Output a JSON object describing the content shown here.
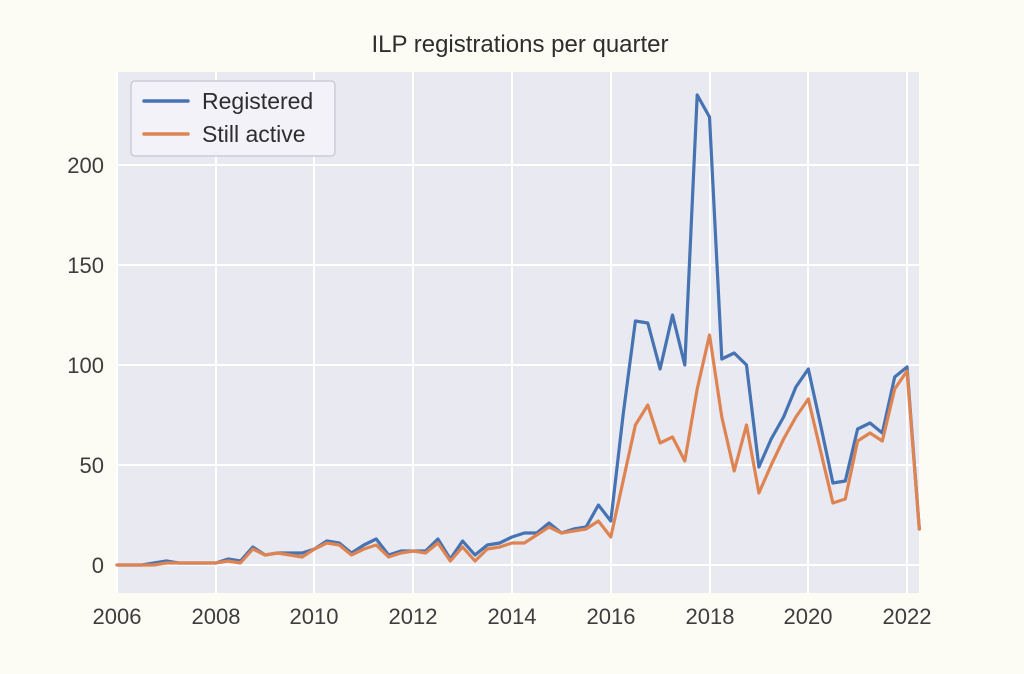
{
  "title": "ILP registrations per quarter",
  "legend": {
    "items": [
      {
        "id": "registered",
        "label": "Registered",
        "color": "#4673b2"
      },
      {
        "id": "still-active",
        "label": "Still active",
        "color": "#de8452"
      }
    ]
  },
  "axes": {
    "x_tick_labels": [
      "2006",
      "2008",
      "2010",
      "2012",
      "2014",
      "2016",
      "2018",
      "2020",
      "2022"
    ],
    "y_tick_labels": [
      "0",
      "50",
      "100",
      "150",
      "200"
    ]
  },
  "chart_data": {
    "type": "line",
    "title": "ILP registrations per quarter",
    "xlabel": "",
    "ylabel": "",
    "x_unit": "decimal year (quarterly points, 2006Q1 - 2022Q2)",
    "x": [
      2006.0,
      2006.25,
      2006.5,
      2006.75,
      2007.0,
      2007.25,
      2007.5,
      2007.75,
      2008.0,
      2008.25,
      2008.5,
      2008.75,
      2009.0,
      2009.25,
      2009.5,
      2009.75,
      2010.0,
      2010.25,
      2010.5,
      2010.75,
      2011.0,
      2011.25,
      2011.5,
      2011.75,
      2012.0,
      2012.25,
      2012.5,
      2012.75,
      2013.0,
      2013.25,
      2013.5,
      2013.75,
      2014.0,
      2014.25,
      2014.5,
      2014.75,
      2015.0,
      2015.25,
      2015.5,
      2015.75,
      2016.0,
      2016.25,
      2016.5,
      2016.75,
      2017.0,
      2017.25,
      2017.5,
      2017.75,
      2018.0,
      2018.25,
      2018.5,
      2018.75,
      2019.0,
      2019.25,
      2019.5,
      2019.75,
      2020.0,
      2020.25,
      2020.5,
      2020.75,
      2021.0,
      2021.25,
      2021.5,
      2021.75,
      2022.0,
      2022.25
    ],
    "series": [
      {
        "id": "registered",
        "name": "Registered",
        "color": "#4673b2",
        "values": [
          0,
          0,
          0,
          1,
          2,
          1,
          1,
          1,
          1,
          3,
          2,
          9,
          5,
          6,
          6,
          6,
          8,
          12,
          11,
          6,
          10,
          13,
          5,
          7,
          7,
          7,
          13,
          3,
          12,
          5,
          10,
          11,
          14,
          16,
          16,
          21,
          16,
          18,
          19,
          30,
          22,
          75,
          122,
          121,
          98,
          125,
          100,
          235,
          224,
          103,
          106,
          100,
          49,
          63,
          74,
          89,
          98,
          70,
          41,
          42,
          68,
          71,
          66,
          94,
          99,
          18
        ]
      },
      {
        "id": "still-active",
        "name": "Still active",
        "color": "#de8452",
        "values": [
          0,
          0,
          0,
          0,
          1,
          1,
          1,
          1,
          1,
          2,
          1,
          8,
          5,
          6,
          5,
          4,
          8,
          11,
          10,
          5,
          8,
          10,
          4,
          6,
          7,
          6,
          11,
          2,
          9,
          2,
          8,
          9,
          11,
          11,
          15,
          19,
          16,
          17,
          18,
          22,
          14,
          42,
          70,
          80,
          61,
          64,
          52,
          88,
          115,
          74,
          47,
          70,
          36,
          50,
          63,
          74,
          83,
          57,
          31,
          33,
          62,
          66,
          62,
          88,
          97,
          18
        ]
      }
    ],
    "xlim": [
      2006.0,
      2022.3
    ],
    "ylim": [
      -14,
      246
    ],
    "x_ticks": [
      2006,
      2008,
      2010,
      2012,
      2014,
      2016,
      2018,
      2020,
      2022
    ],
    "y_ticks": [
      0,
      50,
      100,
      150,
      200
    ],
    "grid": true,
    "grid_color": "#ffffff",
    "plot_background": "#e9e9f1",
    "legend_position": "upper left"
  }
}
